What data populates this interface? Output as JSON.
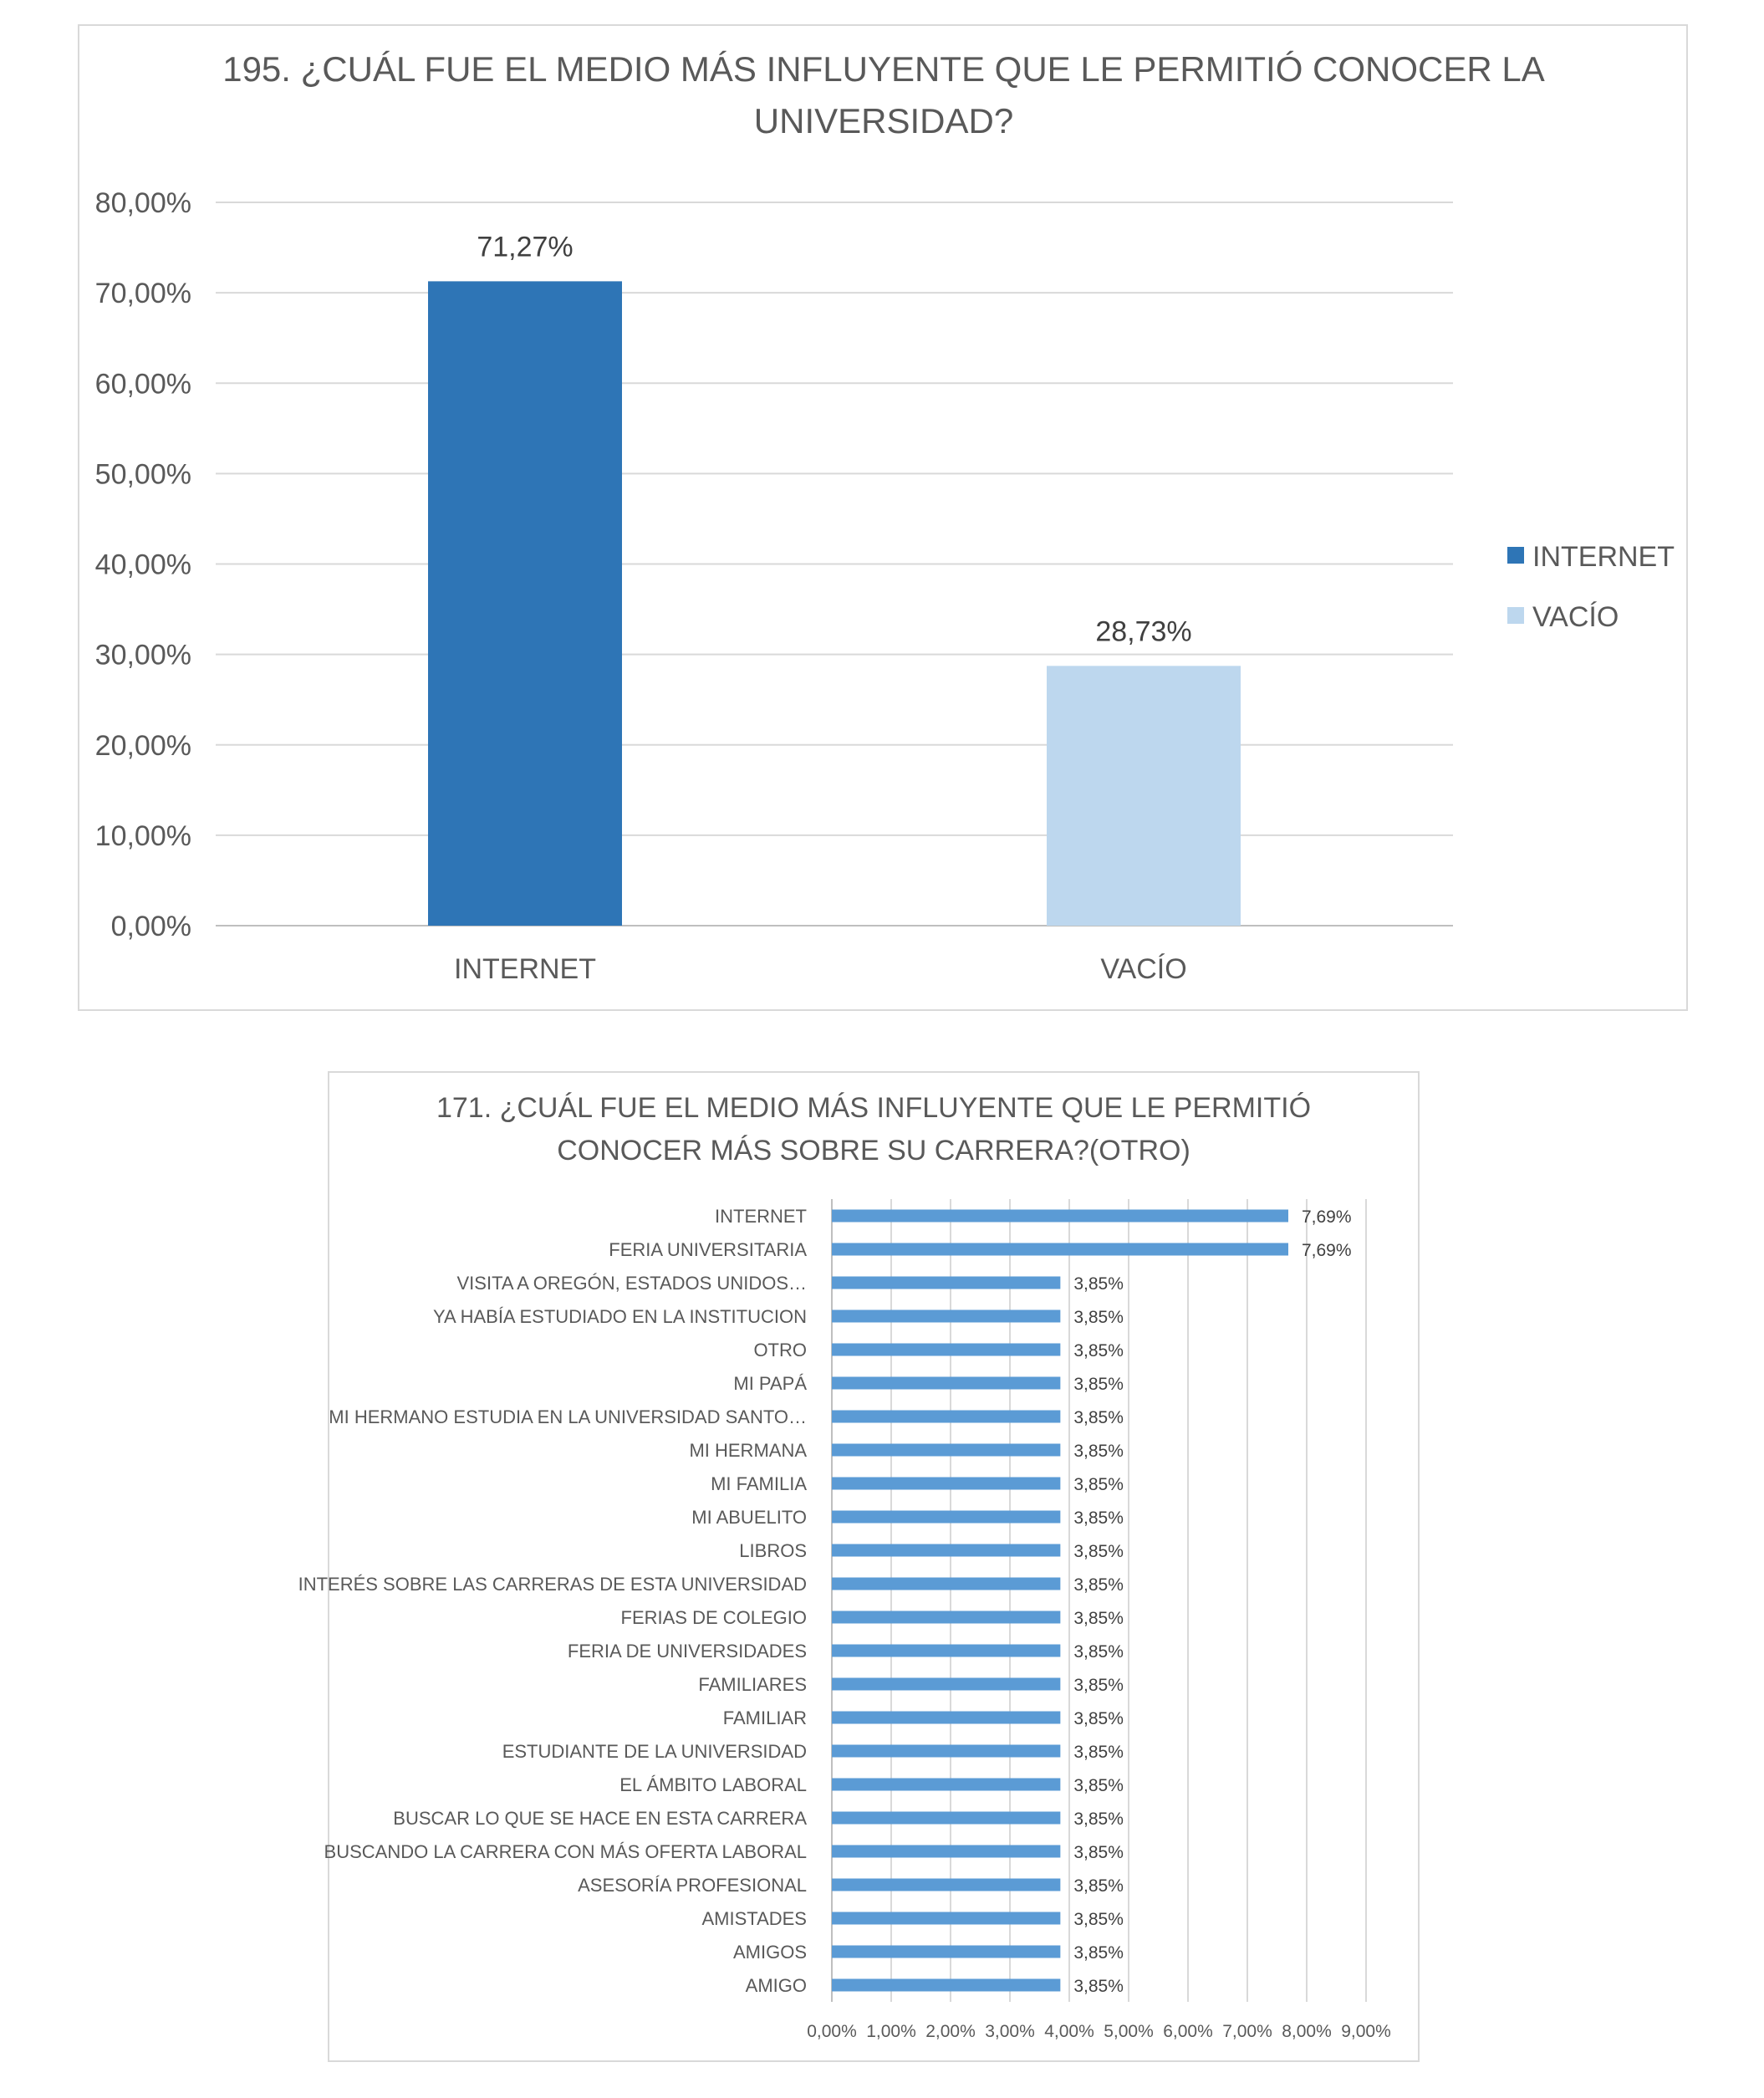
{
  "chart_data": [
    {
      "type": "bar",
      "title_lines": [
        "195. ¿CUÁL FUE EL MEDIO MÁS INFLUYENTE QUE LE PERMITIÓ CONOCER LA",
        "UNIVERSIDAD?"
      ],
      "categories": [
        "INTERNET",
        "VACÍO"
      ],
      "values": [
        71.27,
        28.73
      ],
      "data_labels": [
        "71,27%",
        "28,73%"
      ],
      "colors": [
        "#2e75b6",
        "#bdd7ee"
      ],
      "legend": [
        {
          "label": "INTERNET",
          "color": "#2e75b6"
        },
        {
          "label": "VACÍO",
          "color": "#bdd7ee"
        }
      ],
      "legend_position": "right",
      "ylim": [
        0,
        80
      ],
      "yticks": [
        0,
        10,
        20,
        30,
        40,
        50,
        60,
        70,
        80
      ],
      "ytick_labels": [
        "0,00%",
        "10,00%",
        "20,00%",
        "30,00%",
        "40,00%",
        "50,00%",
        "60,00%",
        "70,00%",
        "80,00%"
      ],
      "grid": true
    },
    {
      "type": "bar",
      "orientation": "horizontal",
      "title_lines": [
        "171. ¿CUÁL FUE EL MEDIO MÁS INFLUYENTE QUE LE PERMITIÓ",
        "CONOCER MÁS SOBRE SU CARRERA?(OTRO)"
      ],
      "categories": [
        "INTERNET",
        "FERIA UNIVERSITARIA",
        "VISITA A OREGÓN, ESTADOS UNIDOS…",
        "YA HABÍA ESTUDIADO EN LA INSTITUCION",
        "OTRO",
        "MI PAPÁ",
        "MI HERMANO ESTUDIA EN LA UNIVERSIDAD SANTO…",
        "MI HERMANA",
        "MI FAMILIA",
        "MI ABUELITO",
        "LIBROS",
        "INTERÉS SOBRE LAS CARRERAS DE ESTA UNIVERSIDAD",
        "FERIAS DE COLEGIO",
        "FERIA DE UNIVERSIDADES",
        "FAMILIARES",
        "FAMILIAR",
        "ESTUDIANTE DE LA UNIVERSIDAD",
        "EL ÁMBITO LABORAL",
        "BUSCAR LO QUE SE HACE EN ESTA CARRERA",
        "BUSCANDO LA CARRERA CON MÁS OFERTA LABORAL",
        "ASESORÍA PROFESIONAL",
        "AMISTADES",
        "AMIGOS",
        "AMIGO"
      ],
      "values": [
        7.69,
        7.69,
        3.85,
        3.85,
        3.85,
        3.85,
        3.85,
        3.85,
        3.85,
        3.85,
        3.85,
        3.85,
        3.85,
        3.85,
        3.85,
        3.85,
        3.85,
        3.85,
        3.85,
        3.85,
        3.85,
        3.85,
        3.85,
        3.85
      ],
      "data_labels": [
        "7,69%",
        "7,69%",
        "3,85%",
        "3,85%",
        "3,85%",
        "3,85%",
        "3,85%",
        "3,85%",
        "3,85%",
        "3,85%",
        "3,85%",
        "3,85%",
        "3,85%",
        "3,85%",
        "3,85%",
        "3,85%",
        "3,85%",
        "3,85%",
        "3,85%",
        "3,85%",
        "3,85%",
        "3,85%",
        "3,85%",
        "3,85%"
      ],
      "color": "#5b9bd5",
      "xlim": [
        0,
        9
      ],
      "xticks": [
        0,
        1,
        2,
        3,
        4,
        5,
        6,
        7,
        8,
        9
      ],
      "xtick_labels": [
        "0,00%",
        "1,00%",
        "2,00%",
        "3,00%",
        "4,00%",
        "5,00%",
        "6,00%",
        "7,00%",
        "8,00%",
        "9,00%"
      ],
      "grid": true
    }
  ]
}
